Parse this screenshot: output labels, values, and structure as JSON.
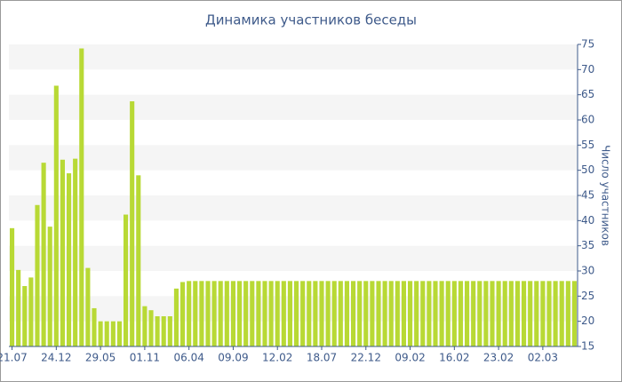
{
  "chart_data": {
    "type": "bar",
    "title": "Динамика участников беседы",
    "y_axis_label": "Число участников",
    "categories": [
      "21.07",
      null,
      null,
      null,
      null,
      null,
      null,
      "24.12",
      null,
      null,
      null,
      null,
      null,
      null,
      "29.05",
      null,
      null,
      null,
      null,
      null,
      null,
      "01.11",
      null,
      null,
      null,
      null,
      null,
      null,
      "06.04",
      null,
      null,
      null,
      null,
      null,
      null,
      "09.09",
      null,
      null,
      null,
      null,
      null,
      null,
      "12.02",
      null,
      null,
      null,
      null,
      null,
      null,
      "18.07",
      null,
      null,
      null,
      null,
      null,
      null,
      "22.12",
      null,
      null,
      null,
      null,
      null,
      null,
      "09.02",
      null,
      null,
      null,
      null,
      null,
      null,
      "16.02",
      null,
      null,
      null,
      null,
      null,
      null,
      "23.02",
      null,
      null,
      null,
      null,
      null,
      null,
      "02.03",
      null,
      null,
      null,
      null,
      null
    ],
    "values": [
      38.5,
      30.2,
      27,
      28.7,
      43.1,
      51.5,
      38.8,
      66.8,
      52.1,
      49.4,
      52.3,
      74.2,
      30.6,
      22.6,
      20,
      20,
      20,
      20,
      41.2,
      63.7,
      49,
      23,
      22.2,
      21,
      21,
      21,
      26.5,
      27.8,
      28,
      28,
      28,
      28,
      28,
      28,
      28,
      28,
      28,
      28,
      28,
      28,
      28,
      28,
      28,
      28,
      28,
      28,
      28,
      28,
      28,
      28,
      28,
      28,
      28,
      28,
      28,
      28,
      28,
      28,
      28,
      28,
      28,
      28,
      28,
      28,
      28,
      28,
      28,
      28,
      28,
      28,
      28,
      28,
      28,
      28,
      28,
      28,
      28,
      28,
      28,
      28,
      28,
      28,
      28,
      28,
      28,
      28,
      28,
      28,
      28,
      28
    ],
    "color": "#b8d935",
    "ylim": [
      15,
      75
    ],
    "yticks": [
      15,
      20,
      25,
      30,
      35,
      40,
      45,
      50,
      55,
      60,
      65,
      70,
      75
    ],
    "grid": "bands",
    "y_axis_side": "right"
  }
}
